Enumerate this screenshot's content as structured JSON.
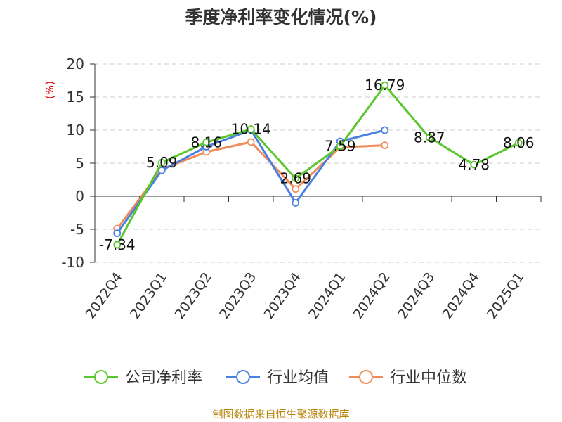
{
  "chart_data": {
    "type": "line",
    "title": "季度净利率变化情况(%)",
    "ylabel": "(%)",
    "xlabel": "",
    "categories": [
      "2022Q4",
      "2023Q1",
      "2023Q2",
      "2023Q3",
      "2023Q4",
      "2024Q1",
      "2024Q2",
      "2024Q3",
      "2024Q4",
      "2025Q1"
    ],
    "ylim": [
      -10,
      20
    ],
    "yticks": [
      "-10",
      "-5",
      "0",
      "5",
      "10",
      "15",
      "20"
    ],
    "grid": "horizontal dashed",
    "legend_position": "bottom",
    "series": [
      {
        "name": "公司净利率",
        "color": "#5ac72d",
        "values": [
          -7.34,
          5.09,
          8.16,
          10.14,
          2.69,
          7.59,
          16.79,
          8.87,
          4.78,
          8.06
        ],
        "labels": [
          "-7.34",
          "5.09",
          "8.16",
          "10.14",
          "2.69",
          "7.59",
          "16.79",
          "8.87",
          "4.78",
          "8.06"
        ]
      },
      {
        "name": "行业均值",
        "color": "#4a7fe0",
        "values": [
          -5.6,
          3.9,
          7.5,
          10.0,
          -1.0,
          8.3,
          10.0,
          null,
          null,
          null
        ]
      },
      {
        "name": "行业中位数",
        "color": "#f08c5a",
        "values": [
          -4.9,
          4.1,
          6.7,
          8.2,
          1.1,
          7.4,
          7.7,
          null,
          null,
          null
        ]
      }
    ]
  },
  "footer": {
    "source": "制图数据来自恒生聚源数据库"
  }
}
